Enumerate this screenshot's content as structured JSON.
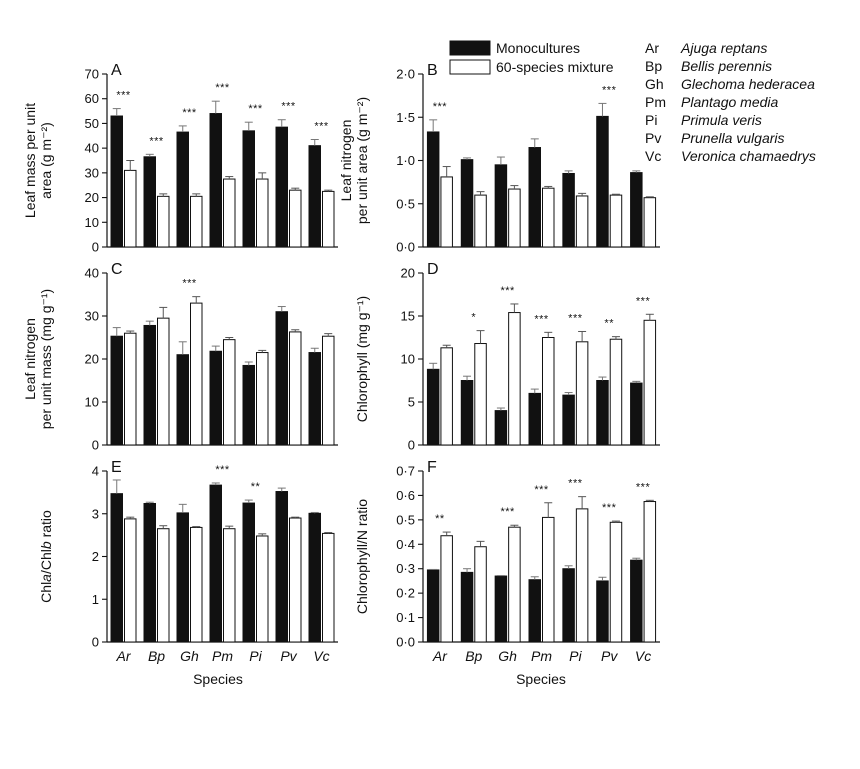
{
  "legend": {
    "series": [
      {
        "name": "Monocultures",
        "color": "#111111"
      },
      {
        "name": "60-species mixture",
        "color": "#ffffff"
      }
    ],
    "species": [
      {
        "abbr": "Ar",
        "name": "Ajuga reptans"
      },
      {
        "abbr": "Bp",
        "name": "Bellis perennis"
      },
      {
        "abbr": "Gh",
        "name": "Glechoma hederacea"
      },
      {
        "abbr": "Pm",
        "name": "Plantago media"
      },
      {
        "abbr": "Pi",
        "name": "Primula veris"
      },
      {
        "abbr": "Pv",
        "name": "Prunella vulgaris"
      },
      {
        "abbr": "Vc",
        "name": "Veronica chamaedrys"
      }
    ]
  },
  "xlabel": "Species",
  "chart_data": [
    {
      "panel": "A",
      "type": "bar",
      "ylabel": [
        "Leaf mass per unit",
        "area (g m⁻²)"
      ],
      "categories": [
        "Ar",
        "Bp",
        "Gh",
        "Pm",
        "Pi",
        "Pv",
        "Vc"
      ],
      "ylim": [
        0,
        70
      ],
      "yticks": [
        "0",
        "10",
        "20",
        "30",
        "40",
        "50",
        "60",
        "70"
      ],
      "series": [
        {
          "name": "Monocultures",
          "values": [
            53,
            36.5,
            46.5,
            54,
            47,
            48.5,
            41
          ],
          "errors": [
            3,
            1,
            2.5,
            5,
            3.5,
            3,
            2.5
          ]
        },
        {
          "name": "60-species mixture",
          "values": [
            31,
            20.5,
            20.5,
            27.5,
            27.5,
            23,
            22.5
          ],
          "errors": [
            4,
            1,
            1,
            1,
            2.5,
            0.8,
            0.5
          ]
        }
      ],
      "significance": [
        "***",
        "***",
        "***",
        "***",
        "***",
        "***",
        "***"
      ],
      "show_category_labels": false
    },
    {
      "panel": "B",
      "type": "bar",
      "ylabel": [
        "Leaf nitrogen",
        "per unit area (g m⁻²)"
      ],
      "categories": [
        "Ar",
        "Bp",
        "Gh",
        "Pm",
        "Pi",
        "Pv",
        "Vc"
      ],
      "ylim": [
        0,
        2.0
      ],
      "yticks": [
        "0·0",
        "0·5",
        "1·0",
        "1·5",
        "2·0"
      ],
      "series": [
        {
          "name": "Monocultures",
          "values": [
            1.33,
            1.01,
            0.95,
            1.15,
            0.85,
            1.51,
            0.86
          ],
          "errors": [
            0.14,
            0.02,
            0.09,
            0.1,
            0.03,
            0.15,
            0.02
          ]
        },
        {
          "name": "60-species mixture",
          "values": [
            0.81,
            0.6,
            0.67,
            0.68,
            0.59,
            0.6,
            0.57
          ],
          "errors": [
            0.12,
            0.04,
            0.04,
            0.02,
            0.03,
            0.01,
            0.01
          ]
        }
      ],
      "significance": [
        "***",
        "",
        "",
        "",
        "",
        "***",
        ""
      ],
      "show_category_labels": false
    },
    {
      "panel": "C",
      "type": "bar",
      "ylabel": [
        "Leaf nitrogen",
        "per unit mass (mg g⁻¹)"
      ],
      "categories": [
        "Ar",
        "Bp",
        "Gh",
        "Pm",
        "Pi",
        "Pv",
        "Vc"
      ],
      "ylim": [
        0,
        40
      ],
      "yticks": [
        "0",
        "10",
        "20",
        "30",
        "40"
      ],
      "series": [
        {
          "name": "Monocultures",
          "values": [
            25.3,
            27.8,
            21,
            21.8,
            18.5,
            31,
            21.5
          ],
          "errors": [
            2,
            1,
            3,
            1.2,
            0.8,
            1.2,
            1
          ]
        },
        {
          "name": "60-species mixture",
          "values": [
            26,
            29.5,
            33,
            24.5,
            21.5,
            26.3,
            25.3
          ],
          "errors": [
            0.5,
            2.5,
            1.5,
            0.5,
            0.5,
            0.5,
            0.6
          ]
        }
      ],
      "significance": [
        "",
        "",
        "***",
        "",
        "",
        "",
        ""
      ],
      "show_category_labels": false
    },
    {
      "panel": "D",
      "type": "bar",
      "ylabel": [
        "Chlorophyll (mg g⁻¹)"
      ],
      "categories": [
        "Ar",
        "Bp",
        "Gh",
        "Pm",
        "Pi",
        "Pv",
        "Vc"
      ],
      "ylim": [
        0,
        20
      ],
      "yticks": [
        "0",
        "5",
        "10",
        "15",
        "20"
      ],
      "series": [
        {
          "name": "Monocultures",
          "values": [
            8.8,
            7.5,
            4,
            6,
            5.8,
            7.5,
            7.2
          ],
          "errors": [
            0.7,
            0.5,
            0.3,
            0.5,
            0.3,
            0.4,
            0.2
          ]
        },
        {
          "name": "60-species mixture",
          "values": [
            11.3,
            11.8,
            15.4,
            12.5,
            12,
            12.3,
            14.5
          ],
          "errors": [
            0.3,
            1.5,
            1,
            0.6,
            1.2,
            0.3,
            0.7
          ]
        }
      ],
      "significance": [
        "",
        "*",
        "***",
        "***",
        "***",
        "**",
        "***"
      ],
      "show_category_labels": false
    },
    {
      "panel": "E",
      "type": "bar",
      "ylabel": [
        "Chl​a/Chl​b ratio"
      ],
      "ylabel_italic_parts": [
        "Chl",
        "a",
        "/Chl",
        "b",
        " ratio"
      ],
      "categories": [
        "Ar",
        "Bp",
        "Gh",
        "Pm",
        "Pi",
        "Pv",
        "Vc"
      ],
      "ylim": [
        0,
        4
      ],
      "yticks": [
        "0",
        "1",
        "2",
        "3",
        "4"
      ],
      "series": [
        {
          "name": "Monocultures",
          "values": [
            3.47,
            3.24,
            3.02,
            3.67,
            3.25,
            3.52,
            3.01
          ],
          "errors": [
            0.32,
            0.03,
            0.2,
            0.05,
            0.07,
            0.08,
            0.02
          ]
        },
        {
          "name": "60-species mixture",
          "values": [
            2.88,
            2.65,
            2.68,
            2.65,
            2.48,
            2.9,
            2.54
          ],
          "errors": [
            0.04,
            0.07,
            0.02,
            0.06,
            0.05,
            0.02,
            0.02
          ]
        }
      ],
      "significance": [
        "",
        "",
        "",
        "***",
        "**",
        "",
        ""
      ],
      "show_category_labels": true
    },
    {
      "panel": "F",
      "type": "bar",
      "ylabel": [
        "Chlorophyll/N ratio"
      ],
      "categories": [
        "Ar",
        "Bp",
        "Gh",
        "Pm",
        "Pi",
        "Pv",
        "Vc"
      ],
      "ylim": [
        0,
        0.7
      ],
      "yticks": [
        "0·0",
        "0·1",
        "0·2",
        "0·3",
        "0·4",
        "0·5",
        "0·6",
        "0·7"
      ],
      "series": [
        {
          "name": "Monocultures",
          "values": [
            0.295,
            0.285,
            0.27,
            0.255,
            0.3,
            0.25,
            0.335
          ],
          "errors": [
            0.002,
            0.015,
            0.002,
            0.012,
            0.012,
            0.015,
            0.008
          ]
        },
        {
          "name": "60-species mixture",
          "values": [
            0.435,
            0.39,
            0.47,
            0.51,
            0.545,
            0.49,
            0.575
          ],
          "errors": [
            0.015,
            0.022,
            0.008,
            0.06,
            0.05,
            0.005,
            0.005
          ]
        }
      ],
      "significance": [
        "**",
        "",
        "***",
        "***",
        "***",
        "***",
        "***"
      ],
      "show_category_labels": true
    }
  ]
}
